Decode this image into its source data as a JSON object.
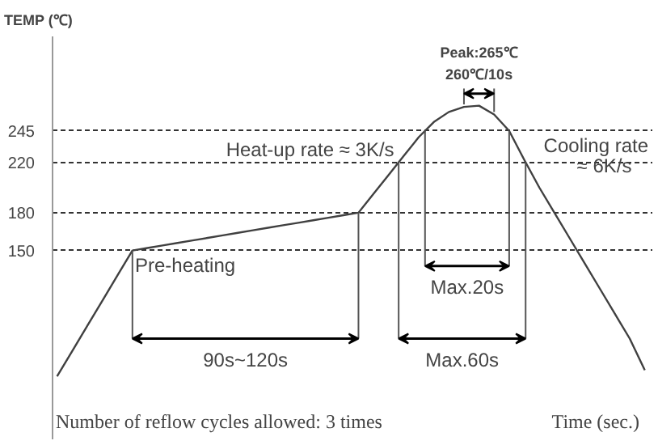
{
  "chart_data": {
    "type": "line",
    "ylabel": "TEMP (℃)",
    "xlabel": "Time (sec.)",
    "categories": [
      null,
      null,
      null,
      null,
      null,
      null,
      null,
      null,
      null,
      null,
      null,
      null,
      null,
      null,
      null,
      null,
      null,
      null,
      null,
      null,
      null,
      null,
      null,
      null,
      null,
      null,
      null,
      null,
      null,
      null,
      null,
      null,
      null,
      null,
      null,
      null,
      null,
      null,
      null,
      null
    ],
    "series": [
      {
        "color": "#404040",
        "values": [
          50,
          70,
          90,
          110,
          130,
          150,
          152,
          154,
          156,
          158,
          160,
          162,
          164,
          166,
          168,
          170,
          172,
          174,
          176,
          178,
          180,
          195,
          210,
          225,
          240,
          252,
          260,
          264,
          265,
          258,
          245,
          222,
          200,
          180,
          160,
          140,
          120,
          100,
          80,
          55
        ]
      }
    ],
    "ylim": [
      0,
      320
    ],
    "yticks": [
      150,
      180,
      220,
      245
    ],
    "grid": "y",
    "tick_labels": "y",
    "annotations": [
      "Peak:265℃",
      "260℃/10s",
      "Heat-up rate ≈ 3K/s",
      "Cooling rate\n≈ 6K/s",
      "Pre-heating",
      "90s~120s",
      "Max.60s",
      "Max.20s",
      "Number of reflow cycles allowed: 3 times"
    ]
  }
}
